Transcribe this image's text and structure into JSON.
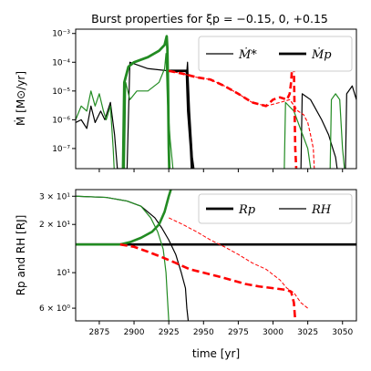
{
  "chart_data": [
    {
      "type": "line",
      "title": "Burst properties for ξp = −0.15, 0, +0.15",
      "ylabel": "Ṁ [M⊙/yr]",
      "xlabel": "",
      "xlim": [
        2858,
        3060
      ],
      "ylim_log10": [
        -7.7,
        -2.85
      ],
      "yscale": "log",
      "grid": false,
      "legend_position": "top-right",
      "y_tick_labels": [
        "10⁻³",
        "10⁻⁴",
        "10⁻⁵",
        "10⁻⁶",
        "10⁻⁷"
      ],
      "y_tick_values": [
        0.001,
        0.0001,
        1e-05,
        1e-06,
        1e-07
      ],
      "x_tick_values": [
        2875,
        2900,
        2925,
        2950,
        2975,
        3000,
        3025,
        3050
      ],
      "legend": [
        {
          "label": "Ṁ*",
          "style": "thin"
        },
        {
          "label": "Ṁp",
          "style": "thick"
        }
      ],
      "series": [
        {
          "color": "#000000",
          "width": 1.2,
          "dash": "",
          "points": [
            [
              2858,
              8e-07
            ],
            [
              2862,
              1e-06
            ],
            [
              2866,
              5e-07
            ],
            [
              2869,
              3e-06
            ],
            [
              2872,
              8e-07
            ],
            [
              2876,
              2e-06
            ],
            [
              2879,
              1e-06
            ],
            [
              2883,
              4e-06
            ],
            [
              2886,
              3e-07
            ],
            [
              2888,
              2e-08
            ],
            [
              2895,
              2e-08
            ],
            [
              2897,
              0.0001
            ],
            [
              2910,
              6e-05
            ],
            [
              2925,
              5e-05
            ],
            [
              2935,
              5e-05
            ],
            [
              2938,
              5e-05
            ],
            [
              2938.5,
              0.0001
            ],
            [
              2940,
              2e-06
            ],
            [
              2942,
              5e-08
            ],
            [
              2944,
              1e-08
            ],
            [
              3020,
              1e-08
            ],
            [
              3021,
              8e-06
            ],
            [
              3027,
              5e-06
            ],
            [
              3035,
              1e-06
            ],
            [
              3040,
              3e-07
            ],
            [
              3043,
              1e-07
            ],
            [
              3045,
              5e-08
            ],
            [
              3047,
              1e-08
            ],
            [
              3052,
              1e-08
            ],
            [
              3053,
              8e-06
            ],
            [
              3057,
              1.5e-05
            ],
            [
              3060,
              5e-06
            ]
          ]
        },
        {
          "color": "#000000",
          "width": 2.8,
          "dash": "",
          "points": [
            [
              2925,
              5e-05
            ],
            [
              2935,
              5e-05
            ],
            [
              2938,
              5e-05
            ],
            [
              2939,
              2e-06
            ],
            [
              2941,
              1e-07
            ],
            [
              2942,
              1e-08
            ]
          ]
        },
        {
          "color": "#228B22",
          "width": 1.2,
          "dash": "",
          "points": [
            [
              2858,
              1e-06
            ],
            [
              2862,
              3e-06
            ],
            [
              2866,
              2e-06
            ],
            [
              2869,
              1e-05
            ],
            [
              2872,
              3e-06
            ],
            [
              2875,
              8e-06
            ],
            [
              2878,
              2e-06
            ],
            [
              2880,
              1e-06
            ],
            [
              2883,
              3e-06
            ],
            [
              2885,
              1e-07
            ],
            [
              2886,
              1e-08
            ],
            [
              2893,
              1e-08
            ],
            [
              2894,
              2e-05
            ],
            [
              2897,
              5e-06
            ],
            [
              2902,
              1e-05
            ],
            [
              2910,
              1e-05
            ],
            [
              2918,
              2e-05
            ],
            [
              2922,
              6e-05
            ],
            [
              2923,
              0.0002
            ],
            [
              2924,
              5e-06
            ],
            [
              2926,
              2e-07
            ],
            [
              2928,
              2e-08
            ],
            [
              3008,
              1e-08
            ],
            [
              3009,
              4e-06
            ],
            [
              3015,
              2e-06
            ],
            [
              3025,
              1e-07
            ],
            [
              3028,
              1e-08
            ],
            [
              3041,
              1e-08
            ],
            [
              3042,
              5e-06
            ],
            [
              3045,
              8e-06
            ],
            [
              3048,
              5e-06
            ],
            [
              3050,
              1e-07
            ],
            [
              3052,
              1e-08
            ]
          ]
        },
        {
          "color": "#228B22",
          "width": 2.8,
          "dash": "",
          "points": [
            [
              2892,
              1e-08
            ],
            [
              2893,
              2e-05
            ],
            [
              2896,
              7e-05
            ],
            [
              2900,
              0.0001
            ],
            [
              2910,
              0.00015
            ],
            [
              2918,
              0.00025
            ],
            [
              2922,
              0.0004
            ],
            [
              2923.5,
              0.0008
            ],
            [
              2924,
              0.0003
            ],
            [
              2924.5,
              1e-05
            ],
            [
              2925,
              1e-07
            ],
            [
              2925.5,
              1e-08
            ]
          ]
        },
        {
          "color": "#ff0000",
          "width": 2.6,
          "dash": "7,4",
          "points": [
            [
              2925,
              5e-05
            ],
            [
              2935,
              4e-05
            ],
            [
              2945,
              3e-05
            ],
            [
              2955,
              2.5e-05
            ],
            [
              2965,
              1.5e-05
            ],
            [
              2975,
              8e-06
            ],
            [
              2985,
              4e-06
            ],
            [
              2995,
              3e-06
            ],
            [
              3000,
              5e-06
            ],
            [
              3005,
              6e-06
            ],
            [
              3010,
              5e-06
            ],
            [
              3012,
              8e-06
            ],
            [
              3013,
              2e-05
            ],
            [
              3014,
              0.0001
            ],
            [
              3015,
              6e-05
            ],
            [
              3016,
              1e-07
            ],
            [
              3017,
              1e-08
            ]
          ]
        },
        {
          "color": "#ff0000",
          "width": 1.1,
          "dash": "4,2",
          "points": [
            [
              2925,
              5e-05
            ],
            [
              2935,
              4e-05
            ],
            [
              2945,
              3e-05
            ],
            [
              2955,
              2.5e-05
            ],
            [
              2965,
              1.5e-05
            ],
            [
              2975,
              8e-06
            ],
            [
              2985,
              4e-06
            ],
            [
              2995,
              3e-06
            ],
            [
              3005,
              4e-06
            ],
            [
              3012,
              5e-06
            ],
            [
              3018,
              2e-06
            ],
            [
              3022,
              1.5e-06
            ],
            [
              3025,
              8e-07
            ],
            [
              3027,
              3e-07
            ],
            [
              3029,
              1e-07
            ],
            [
              3030,
              1e-08
            ]
          ]
        }
      ]
    },
    {
      "type": "line",
      "title": "",
      "ylabel": "Rp and RH [RJ]",
      "xlabel": "time [yr]",
      "xlim": [
        2858,
        3060
      ],
      "ylim": [
        5,
        33
      ],
      "yscale": "log",
      "grid": false,
      "legend_position": "top-right",
      "y_tick_labels": [
        "3 × 10¹",
        "2 × 10¹",
        "10¹",
        "6 × 10⁰"
      ],
      "y_tick_values": [
        30,
        20,
        10,
        6
      ],
      "x_tick_labels": [
        "2875",
        "2900",
        "2925",
        "2950",
        "2975",
        "3000",
        "3025",
        "3050"
      ],
      "x_tick_values": [
        2875,
        2900,
        2925,
        2950,
        2975,
        3000,
        3025,
        3050
      ],
      "legend": [
        {
          "label": "Rp",
          "style": "thick"
        },
        {
          "label": "RH",
          "style": "thin"
        }
      ],
      "series": [
        {
          "color": "#000000",
          "width": 2.6,
          "dash": "",
          "points": [
            [
              2858,
              15
            ],
            [
              3060,
              15
            ]
          ]
        },
        {
          "color": "#000000",
          "width": 1.2,
          "dash": "",
          "points": [
            [
              2858,
              30
            ],
            [
              2880,
              29.5
            ],
            [
              2895,
              28
            ],
            [
              2905,
              26
            ],
            [
              2915,
              22
            ],
            [
              2920,
              19
            ],
            [
              2925,
              16
            ],
            [
              2930,
              13
            ],
            [
              2934,
              10
            ],
            [
              2937,
              8
            ],
            [
              2938,
              6
            ],
            [
              2939,
              5
            ]
          ]
        },
        {
          "color": "#228B22",
          "width": 1.2,
          "dash": "",
          "points": [
            [
              2858,
              30
            ],
            [
              2880,
              29.5
            ],
            [
              2895,
              28
            ],
            [
              2905,
              26
            ],
            [
              2912,
              22
            ],
            [
              2917,
              18
            ],
            [
              2921,
              14
            ],
            [
              2923,
              10
            ],
            [
              2924,
              7
            ],
            [
              2925,
              5
            ]
          ]
        },
        {
          "color": "#228B22",
          "width": 2.6,
          "dash": "",
          "points": [
            [
              2858,
              15
            ],
            [
              2890,
              15
            ],
            [
              2897,
              15.5
            ],
            [
              2905,
              16.5
            ],
            [
              2913,
              18
            ],
            [
              2918,
              20
            ],
            [
              2922,
              24
            ],
            [
              2925,
              30
            ],
            [
              2926.5,
              33
            ]
          ]
        },
        {
          "color": "#ff0000",
          "width": 1.0,
          "dash": "4,2",
          "points": [
            [
              2925,
              22
            ],
            [
              2935,
              20
            ],
            [
              2945,
              18
            ],
            [
              2955,
              16
            ],
            [
              2965,
              14.5
            ],
            [
              2975,
              13
            ],
            [
              2985,
              11.5
            ],
            [
              2995,
              10.5
            ],
            [
              3005,
              9
            ],
            [
              3010,
              8
            ],
            [
              3015,
              7.5
            ],
            [
              3020,
              6.5
            ],
            [
              3025,
              6
            ]
          ]
        },
        {
          "color": "#ff0000",
          "width": 2.6,
          "dash": "8,4",
          "points": [
            [
              2890,
              15
            ],
            [
              2900,
              14.5
            ],
            [
              2910,
              13.5
            ],
            [
              2920,
              12.5
            ],
            [
              2930,
              11.5
            ],
            [
              2940,
              10.5
            ],
            [
              2950,
              10
            ],
            [
              2960,
              9.5
            ],
            [
              2970,
              9
            ],
            [
              2980,
              8.5
            ],
            [
              2990,
              8.2
            ],
            [
              3000,
              8
            ],
            [
              3010,
              7.8
            ],
            [
              3013,
              7.6
            ],
            [
              3015,
              6.5
            ],
            [
              3016,
              5
            ]
          ]
        }
      ]
    }
  ]
}
